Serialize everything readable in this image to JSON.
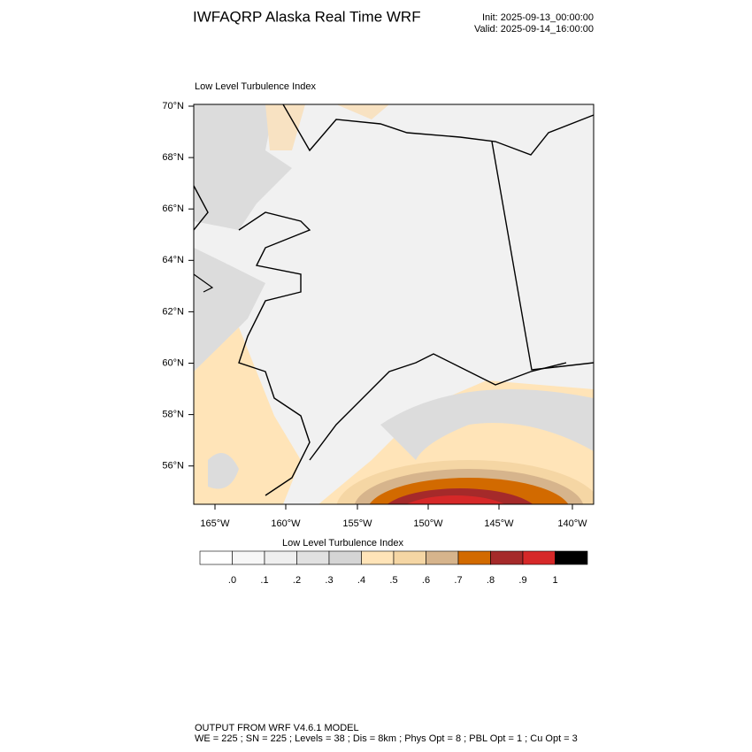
{
  "header": {
    "title": "IWFAQRP Alaska Real Time WRF",
    "init": "Init: 2025-09-13_00:00:00",
    "valid": "Valid: 2025-09-14_16:00:00"
  },
  "map": {
    "subtitle": "Low Level Turbulence Index",
    "lat_labels": [
      "70°N",
      "68°N",
      "66°N",
      "64°N",
      "62°N",
      "60°N",
      "58°N",
      "56°N"
    ],
    "lon_labels": [
      "165°W",
      "160°W",
      "155°W",
      "150°W",
      "145°W",
      "140°W"
    ]
  },
  "colorbar": {
    "title": "Low Level Turbulence Index",
    "colors": [
      "#ffffff",
      "#f7f7f7",
      "#efefef",
      "#e1e1e1",
      "#d5d5d5",
      "#ffe4b8",
      "#f5d6a4",
      "#d6b48c",
      "#d26a00",
      "#a52a2a",
      "#d62828",
      "#000000"
    ],
    "labels": [
      ".0",
      ".1",
      ".2",
      ".3",
      ".4",
      ".5",
      ".6",
      ".7",
      ".8",
      ".9",
      "1"
    ]
  },
  "footer": {
    "line1": "OUTPUT FROM WRF V4.6.1 MODEL",
    "line2": "WE = 225 ; SN = 225 ; Levels = 38 ; Dis = 8km ; Phys Opt = 8 ; PBL Opt = 1 ; Cu Opt = 3"
  }
}
